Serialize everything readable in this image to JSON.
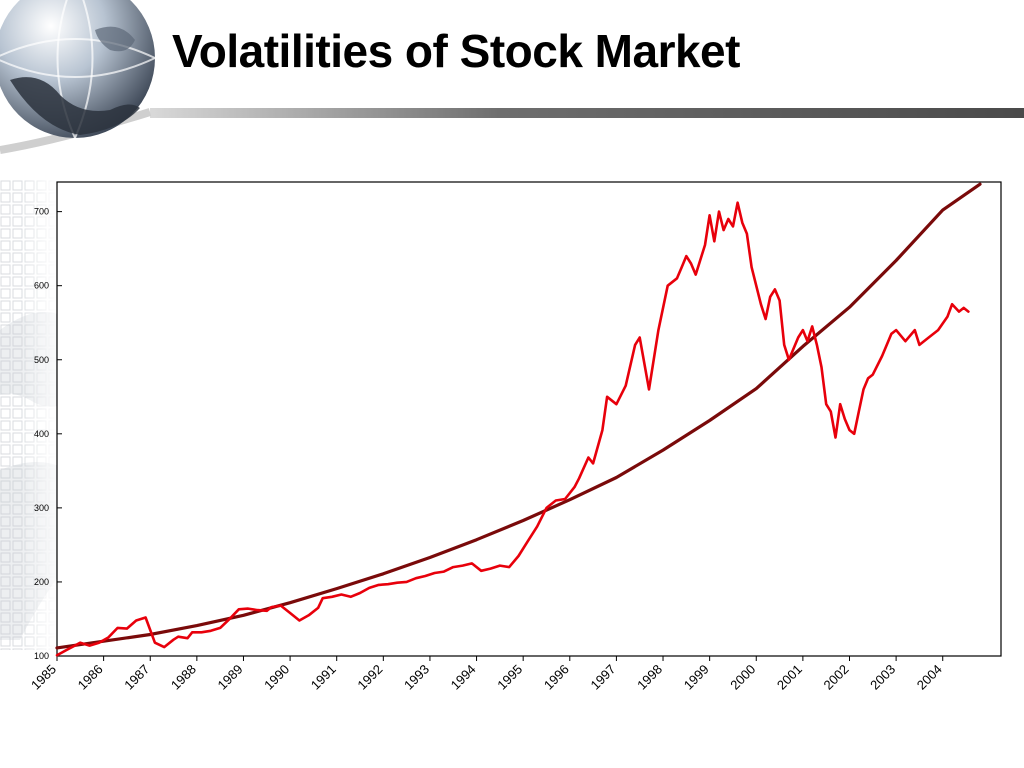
{
  "slide": {
    "title": "Volatilities of Stock Market"
  },
  "colors": {
    "actual_series": "#e8000b",
    "trend_series": "#7a0a0a",
    "frame": "#000000"
  },
  "icons": {
    "logo": "globe-icon"
  },
  "chart_data": {
    "type": "line",
    "title": "",
    "xlabel": "",
    "ylabel": "",
    "ylim": [
      100,
      740
    ],
    "xlim": [
      1985,
      2005.25
    ],
    "grid": false,
    "legend": "none",
    "yticks": [
      100,
      200,
      300,
      400,
      500,
      600,
      700
    ],
    "yticklabels": [
      "100",
      "200",
      "300",
      "400",
      "500",
      "600",
      "700"
    ],
    "xticklabels": [
      "1985",
      "1986",
      "1987",
      "1988",
      "1989",
      "1990",
      "1991",
      "1992",
      "1993",
      "1994",
      "1995",
      "1996",
      "1997",
      "1998",
      "1999",
      "2000",
      "2001",
      "2002",
      "2003",
      "2004"
    ],
    "series": [
      {
        "key": "actual",
        "x": [
          1985.0,
          1985.2,
          1985.5,
          1985.7,
          1985.9,
          1986.1,
          1986.3,
          1986.5,
          1986.7,
          1986.9,
          1987.1,
          1987.3,
          1987.5,
          1987.6,
          1987.8,
          1987.9,
          1988.1,
          1988.3,
          1988.5,
          1988.7,
          1988.9,
          1989.1,
          1989.3,
          1989.5,
          1989.6,
          1989.8,
          1990.0,
          1990.2,
          1990.4,
          1990.6,
          1990.7,
          1990.9,
          1991.1,
          1991.3,
          1991.5,
          1991.7,
          1991.9,
          1992.1,
          1992.3,
          1992.5,
          1992.7,
          1992.9,
          1993.1,
          1993.3,
          1993.5,
          1993.7,
          1993.9,
          1994.1,
          1994.3,
          1994.5,
          1994.7,
          1994.9,
          1995.1,
          1995.3,
          1995.5,
          1995.7,
          1995.9,
          1996.1,
          1996.2,
          1996.4,
          1996.5,
          1996.7,
          1996.8,
          1997.0,
          1997.2,
          1997.4,
          1997.5,
          1997.7,
          1997.9,
          1998.1,
          1998.3,
          1998.4,
          1998.5,
          1998.6,
          1998.7,
          1998.9,
          1999.0,
          1999.1,
          1999.2,
          1999.3,
          1999.4,
          1999.5,
          1999.6,
          1999.7,
          1999.8,
          1999.9,
          2000.1,
          2000.2,
          2000.3,
          2000.4,
          2000.5,
          2000.6,
          2000.7,
          2000.9,
          2001.0,
          2001.1,
          2001.2,
          2001.3,
          2001.4,
          2001.5,
          2001.6,
          2001.7,
          2001.8,
          2001.9,
          2002.0,
          2002.1,
          2002.2,
          2002.3,
          2002.4,
          2002.5,
          2002.7,
          2002.9,
          2003.0,
          2003.2,
          2003.4,
          2003.5,
          2003.7,
          2003.9,
          2004.1,
          2004.2,
          2004.35,
          2004.45,
          2004.55
        ],
        "values": [
          101,
          108,
          118,
          114,
          118,
          125,
          138,
          137,
          148,
          152,
          118,
          112,
          122,
          126,
          124,
          132,
          132,
          134,
          138,
          150,
          163,
          164,
          162,
          161,
          166,
          168,
          158,
          148,
          155,
          165,
          178,
          180,
          183,
          180,
          185,
          192,
          196,
          197,
          199,
          200,
          205,
          208,
          212,
          214,
          220,
          222,
          225,
          215,
          218,
          222,
          220,
          235,
          255,
          275,
          300,
          310,
          312,
          328,
          340,
          368,
          360,
          405,
          450,
          440,
          465,
          520,
          530,
          460,
          540,
          600,
          610,
          625,
          640,
          630,
          615,
          655,
          695,
          660,
          700,
          675,
          690,
          680,
          712,
          685,
          670,
          625,
          575,
          555,
          585,
          595,
          580,
          520,
          500,
          530,
          540,
          525,
          545,
          520,
          490,
          440,
          430,
          395,
          440,
          420,
          405,
          400,
          430,
          460,
          475,
          480,
          505,
          535,
          540,
          525,
          540,
          520,
          530,
          540,
          558,
          575,
          565,
          570,
          565
        ]
      },
      {
        "key": "trend",
        "x": [
          1985.0,
          1986.0,
          1987.0,
          1988.0,
          1989.0,
          1990.0,
          1991.0,
          1992.0,
          1993.0,
          1994.0,
          1995.0,
          1996.0,
          1997.0,
          1998.0,
          1999.0,
          2000.0,
          2001.0,
          2002.0,
          2003.0,
          2004.0,
          2004.8
        ],
        "values": [
          111,
          120,
          129,
          141,
          155,
          172,
          191,
          211,
          233,
          257,
          283,
          311,
          341,
          378,
          418,
          461,
          518,
          571,
          634,
          702,
          737
        ]
      }
    ]
  }
}
